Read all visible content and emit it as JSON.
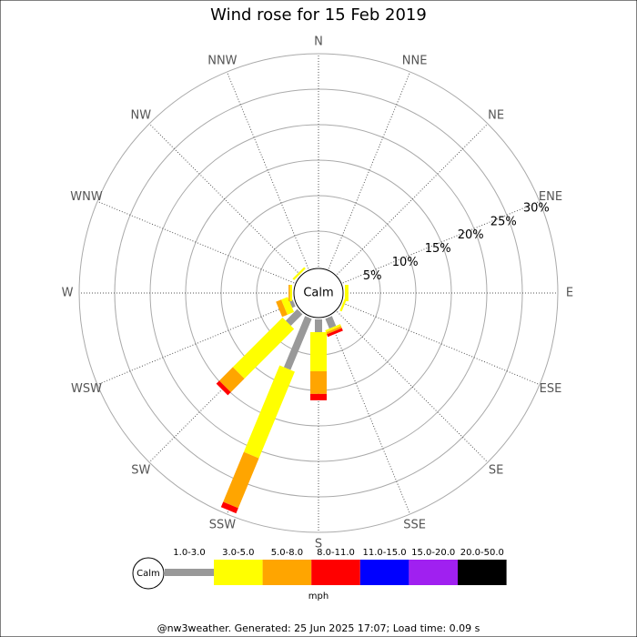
{
  "chart_data": {
    "type": "wind_rose",
    "title": "Wind rose for 15 Feb 2019",
    "directions": [
      "N",
      "NNE",
      "NE",
      "ENE",
      "E",
      "ESE",
      "SE",
      "SSE",
      "S",
      "SSW",
      "SW",
      "WSW",
      "W",
      "WNW",
      "NW",
      "NNW"
    ],
    "series": [
      {
        "name": "1.0-3.0",
        "color": "#999999",
        "values": [
          0,
          0,
          0,
          0,
          0,
          0,
          0,
          1.5,
          1.8,
          7.8,
          2.3,
          0.5,
          0,
          0,
          0,
          0
        ]
      },
      {
        "name": "3.0-5.0",
        "color": "#ffff00",
        "values": [
          0,
          0,
          0,
          0,
          0.5,
          0.3,
          0,
          0.3,
          5.5,
          13.2,
          9.9,
          1.0,
          0.3,
          0,
          0.3,
          0
        ]
      },
      {
        "name": "5.0-8.0",
        "color": "#ffa500",
        "values": [
          0,
          0,
          0,
          0,
          0,
          0,
          0,
          0.3,
          3.2,
          7.6,
          2.7,
          0.8,
          0.2,
          0,
          0,
          0
        ]
      },
      {
        "name": "8.0-11.0",
        "color": "#ff0000",
        "values": [
          0,
          0,
          0,
          0,
          0,
          0,
          0,
          0.4,
          0.9,
          0.8,
          0.6,
          0,
          0,
          0,
          0,
          0
        ]
      },
      {
        "name": "11.0-15.0",
        "color": "#0000ff",
        "values": [
          0,
          0,
          0,
          0,
          0,
          0,
          0,
          0,
          0,
          0,
          0,
          0,
          0,
          0,
          0,
          0
        ]
      },
      {
        "name": "15.0-20.0",
        "color": "#a020f0",
        "values": [
          0,
          0,
          0,
          0,
          0,
          0,
          0,
          0,
          0,
          0,
          0,
          0,
          0,
          0,
          0,
          0
        ]
      },
      {
        "name": "20.0-50.0",
        "color": "#000000",
        "values": [
          0,
          0,
          0,
          0,
          0,
          0,
          0,
          0,
          0,
          0,
          0,
          0,
          0,
          0,
          0,
          0
        ]
      }
    ],
    "rlim": [
      0,
      30
    ],
    "rticks": [
      {
        "value": 5,
        "label": "5%"
      },
      {
        "value": 10,
        "label": "10%"
      },
      {
        "value": 15,
        "label": "15%"
      },
      {
        "value": 20,
        "label": "20%"
      },
      {
        "value": 25,
        "label": "25%"
      },
      {
        "value": 30,
        "label": "30%"
      }
    ],
    "calm_label": "Calm",
    "legend_unit": "mph",
    "footer": "@nw3weather. Generated: 25 Jun 2025 17:07; Load time: 0.09 s"
  }
}
